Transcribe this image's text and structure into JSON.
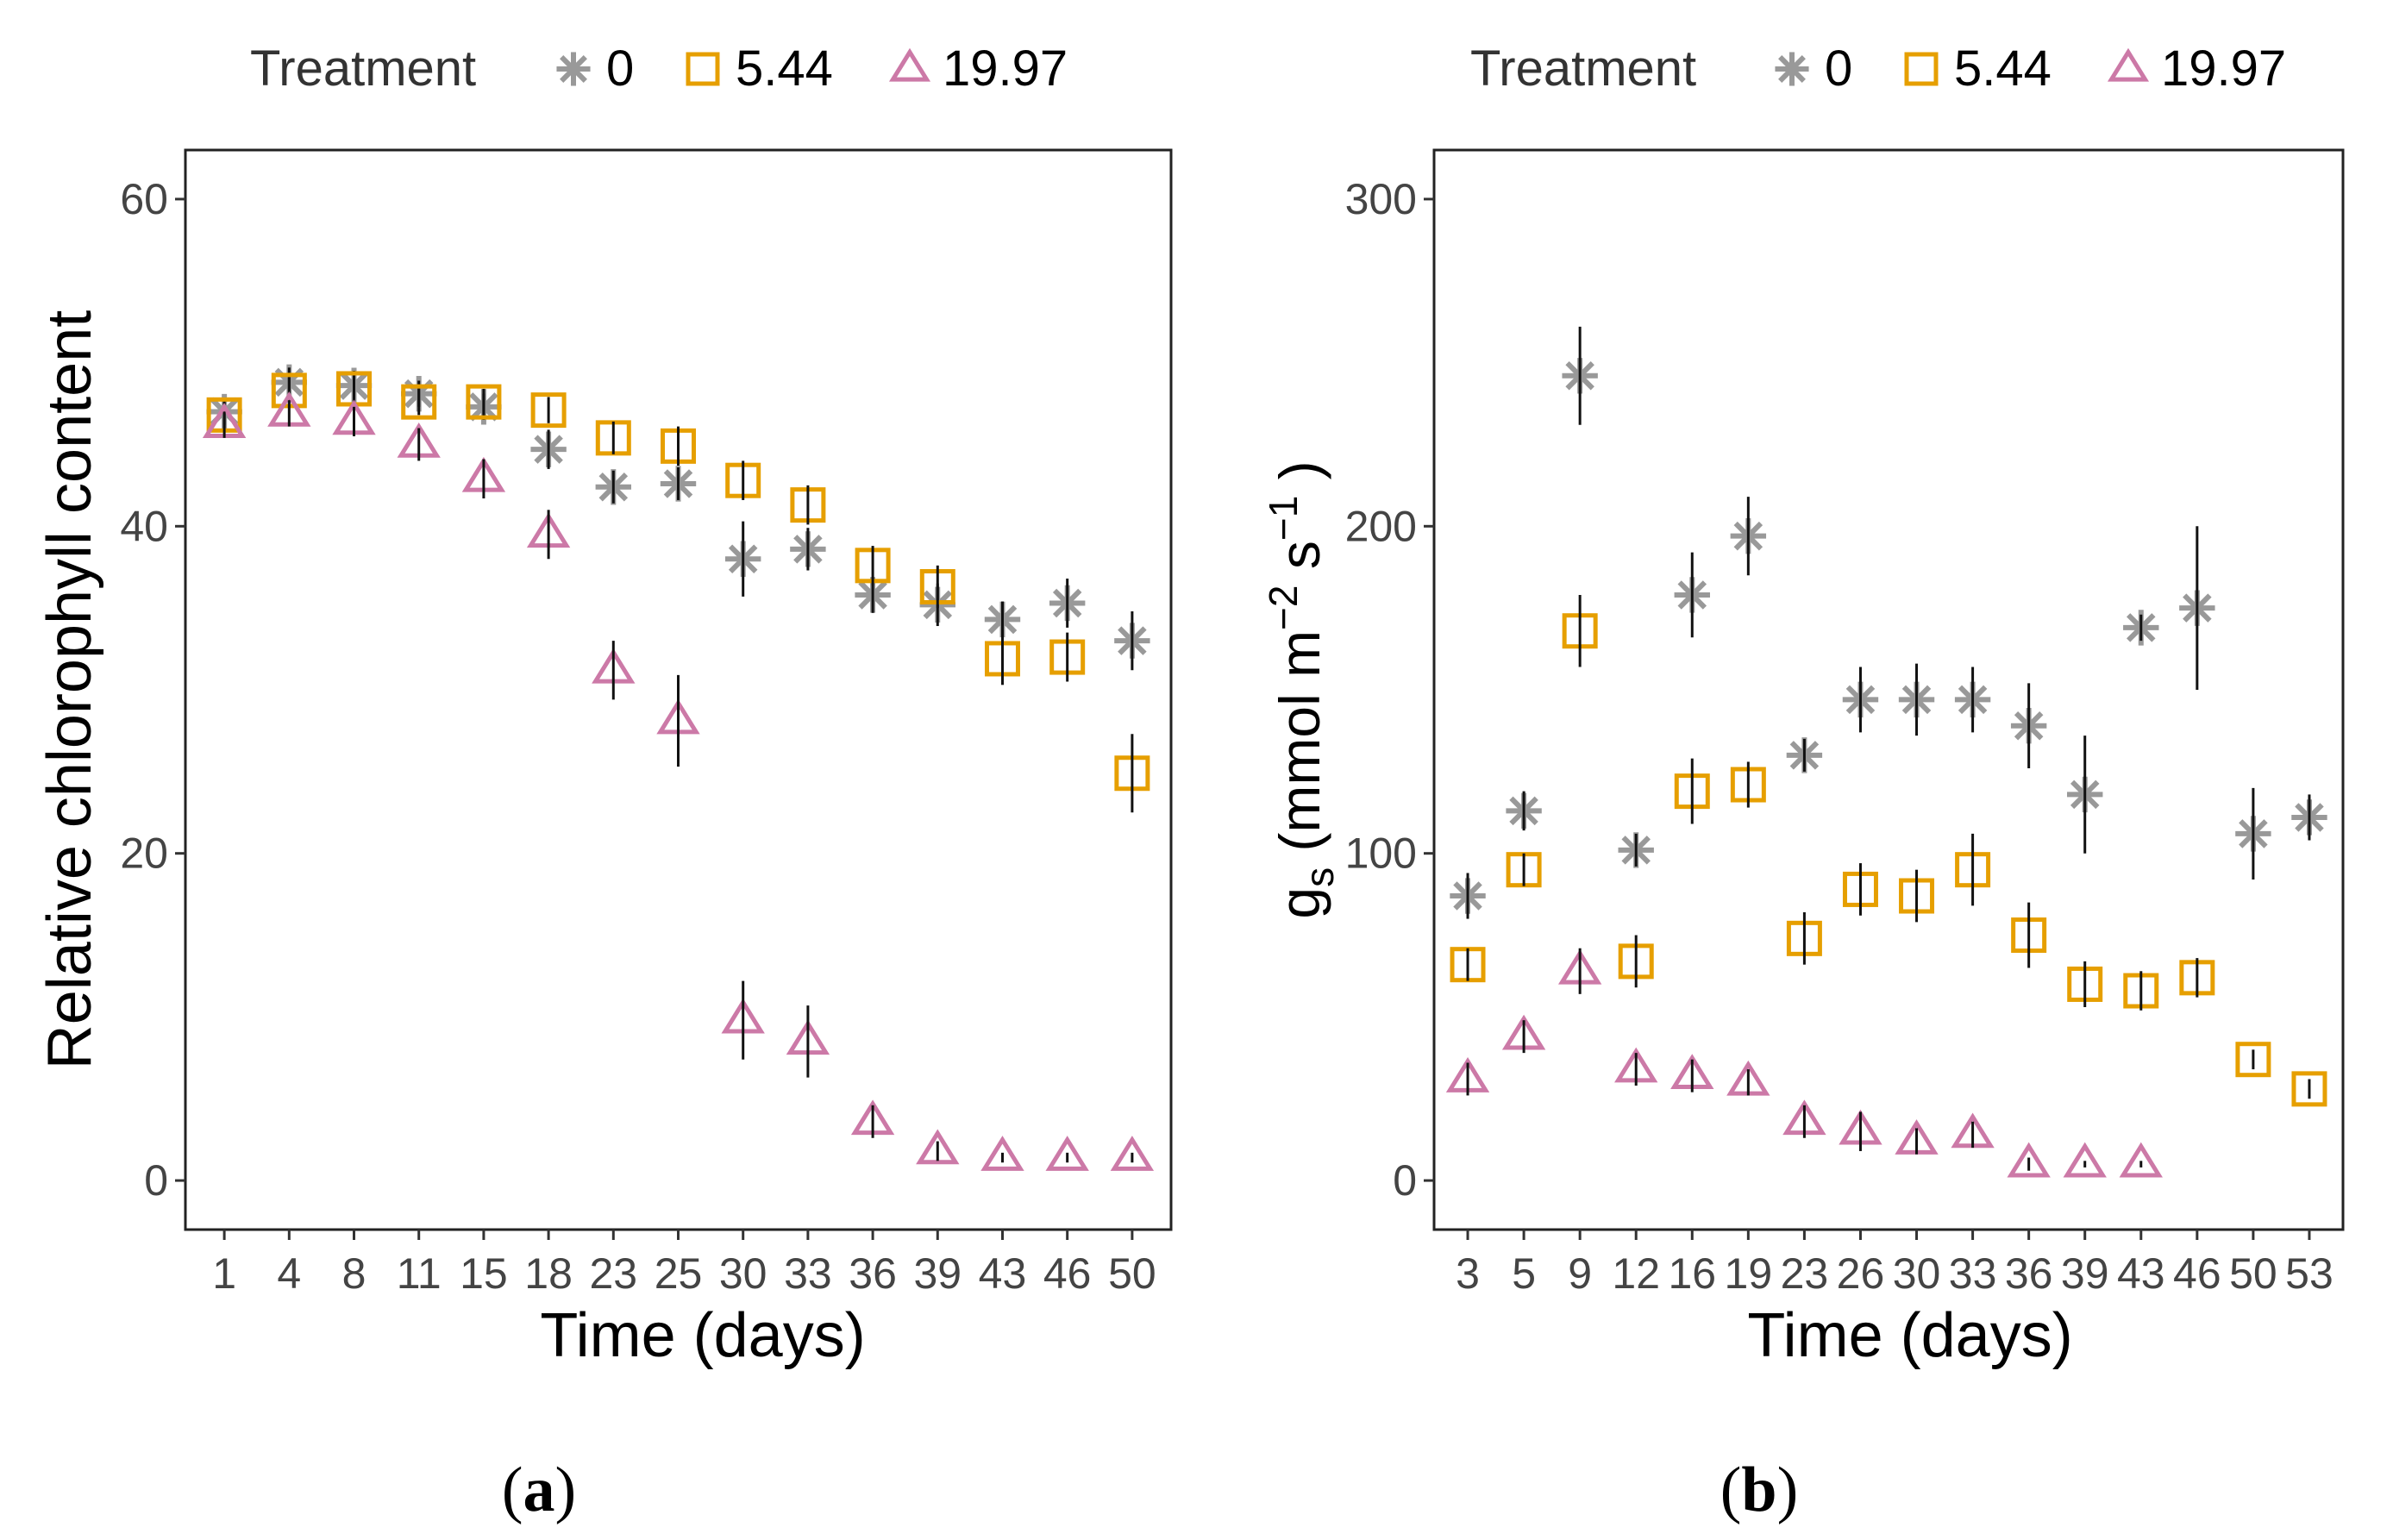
{
  "legend_title": "Treatment",
  "treatments": [
    {
      "label": "0",
      "shape": "asterisk",
      "color": "#999999"
    },
    {
      "label": "5.44",
      "shape": "square",
      "color": "#E69F00"
    },
    {
      "label": "19.97",
      "shape": "triangle",
      "color": "#CC79A7"
    }
  ],
  "chart_data": [
    {
      "type": "scatter",
      "panel": "a",
      "caption": "a",
      "xlabel": "Time (days)",
      "ylabel": "Relative chlorophyll content",
      "legend_title": "Treatment",
      "legend_position": "top",
      "categories": [
        "1",
        "4",
        "8",
        "11",
        "15",
        "18",
        "23",
        "25",
        "30",
        "33",
        "36",
        "39",
        "43",
        "46",
        "50"
      ],
      "ylim": [
        -3,
        63
      ],
      "yticks": [
        0,
        20,
        40,
        60
      ],
      "series": [
        {
          "name": "0",
          "values": [
            47.0,
            48.8,
            48.6,
            48.1,
            47.3,
            44.7,
            42.4,
            42.6,
            38.0,
            38.6,
            35.8,
            35.2,
            34.3,
            35.3,
            33.0
          ],
          "errors": [
            0.8,
            0.9,
            0.9,
            0.8,
            0.8,
            1.2,
            1.0,
            1.0,
            2.3,
            1.3,
            1.1,
            1.3,
            1.1,
            1.5,
            1.8
          ]
        },
        {
          "name": "5.44",
          "values": [
            46.8,
            48.3,
            48.4,
            47.6,
            47.6,
            47.1,
            45.4,
            44.9,
            42.8,
            41.3,
            37.6,
            36.3,
            31.9,
            32.0,
            24.9
          ],
          "errors": [
            0.8,
            0.8,
            0.8,
            0.8,
            0.8,
            0.8,
            1.0,
            1.2,
            1.2,
            1.2,
            1.2,
            1.3,
            1.6,
            1.5,
            2.4
          ]
        },
        {
          "name": "19.97",
          "values": [
            46.2,
            46.9,
            46.4,
            45.0,
            42.9,
            39.5,
            31.2,
            28.1,
            9.8,
            8.5,
            3.6,
            1.8,
            1.4,
            1.4,
            1.4
          ],
          "errors": [
            0.8,
            0.8,
            0.9,
            1.0,
            1.2,
            1.5,
            1.8,
            2.8,
            2.4,
            2.2,
            1.0,
            0.6,
            0.3,
            0.3,
            0.3
          ]
        }
      ]
    },
    {
      "type": "scatter",
      "panel": "b",
      "caption": "b",
      "xlabel": "Time (days)",
      "ylabel_main": "g",
      "ylabel_sub": "s",
      "ylabel_unit_open": " (mmol m",
      "ylabel_sup1": "−2",
      "ylabel_mid": " s",
      "ylabel_sup2": "−1",
      "ylabel_close": " )",
      "legend_title": "Treatment",
      "legend_position": "top",
      "categories": [
        "3",
        "5",
        "9",
        "12",
        "16",
        "19",
        "23",
        "26",
        "30",
        "33",
        "36",
        "39",
        "43",
        "46",
        "50",
        "53"
      ],
      "ylim": [
        -15,
        315
      ],
      "yticks": [
        0,
        100,
        200,
        300
      ],
      "series": [
        {
          "name": "0",
          "values": [
            87,
            113,
            246,
            101,
            179,
            197,
            130,
            147,
            147,
            147,
            139,
            118,
            169,
            175,
            106,
            111
          ],
          "errors": [
            7,
            6,
            15,
            5,
            13,
            12,
            5,
            10,
            11,
            10,
            13,
            18,
            4,
            25,
            14,
            7
          ]
        },
        {
          "name": "5.44",
          "values": [
            66,
            95,
            168,
            67,
            119,
            121,
            74,
            89,
            87,
            95,
            75,
            60,
            58,
            62,
            37,
            28
          ],
          "errors": [
            5,
            5,
            11,
            8,
            10,
            7,
            8,
            8,
            8,
            11,
            10,
            7,
            6,
            6,
            3,
            3
          ]
        },
        {
          "name": "19.97",
          "values": [
            31,
            44,
            64,
            34,
            32,
            30,
            18,
            15,
            12,
            14,
            5,
            5,
            5,
            null,
            null,
            null
          ],
          "errors": [
            5,
            5,
            7,
            5,
            5,
            4,
            5,
            6,
            4,
            4,
            2,
            1,
            1,
            null,
            null,
            null
          ]
        }
      ]
    }
  ]
}
